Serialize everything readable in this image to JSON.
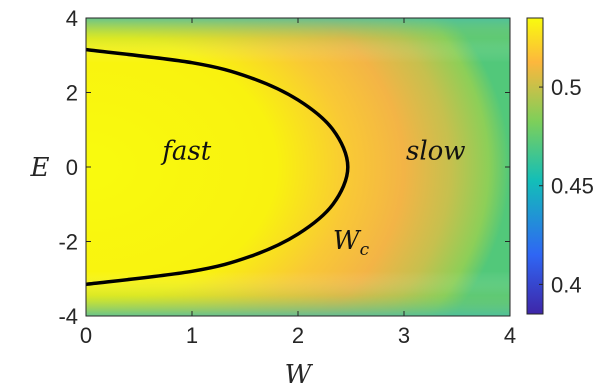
{
  "chart_data": {
    "type": "heatmap",
    "title": "",
    "xlabel": "W",
    "ylabel": "E",
    "xlim": [
      0,
      4
    ],
    "ylim": [
      -4,
      4
    ],
    "x_ticks": [
      0,
      1,
      2,
      3,
      4
    ],
    "x_tick_labels": [
      "0",
      "1",
      "2",
      "3",
      "4"
    ],
    "y_ticks": [
      -4,
      -2,
      0,
      2,
      4
    ],
    "y_tick_labels": [
      "-4",
      "-2",
      "0",
      "2",
      "4"
    ],
    "colorbar": {
      "range": [
        0.385,
        0.535
      ],
      "ticks": [
        0.4,
        0.45,
        0.5
      ],
      "tick_labels": [
        "0.4",
        "0.45",
        "0.5"
      ],
      "colormap": "parula",
      "colors": [
        "#3e26a8",
        "#2f66f4",
        "#13beb8",
        "#7dcf5a",
        "#fcb73d",
        "#f9fb0e"
      ]
    },
    "boundary_curve": {
      "label": "W_c",
      "color": "#000000",
      "points": [
        {
          "E": -3.15,
          "W": 0.0
        },
        {
          "E": -2.8,
          "W": 1.0
        },
        {
          "E": -2.4,
          "W": 1.55
        },
        {
          "E": -1.8,
          "W": 2.0
        },
        {
          "E": -1.0,
          "W": 2.33
        },
        {
          "E": 0.0,
          "W": 2.47
        },
        {
          "E": 1.0,
          "W": 2.33
        },
        {
          "E": 1.8,
          "W": 2.0
        },
        {
          "E": 2.4,
          "W": 1.55
        },
        {
          "E": 2.8,
          "W": 1.0
        },
        {
          "E": 3.15,
          "W": 0.0
        }
      ]
    },
    "annotations": [
      {
        "text": "fast",
        "W": 0.95,
        "E": 0.2
      },
      {
        "text": "slow",
        "W": 3.3,
        "E": 0.2
      },
      {
        "text": "W",
        "subscript": "c",
        "W": 2.5,
        "E": -2.2
      }
    ]
  }
}
